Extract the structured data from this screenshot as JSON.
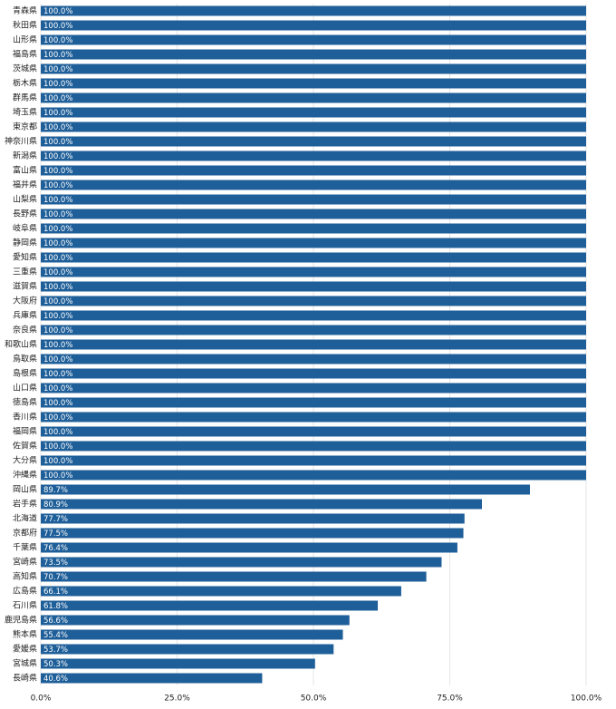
{
  "chart_data": {
    "type": "bar",
    "orientation": "horizontal",
    "color": "#1f5f99",
    "grid": true,
    "categories": [
      "青森県",
      "秋田県",
      "山形県",
      "福島県",
      "茨城県",
      "栃木県",
      "群馬県",
      "埼玉県",
      "東京都",
      "神奈川県",
      "新潟県",
      "富山県",
      "福井県",
      "山梨県",
      "長野県",
      "岐阜県",
      "静岡県",
      "愛知県",
      "三重県",
      "滋賀県",
      "大阪府",
      "兵庫県",
      "奈良県",
      "和歌山県",
      "鳥取県",
      "島根県",
      "山口県",
      "徳島県",
      "香川県",
      "福岡県",
      "佐賀県",
      "大分県",
      "沖縄県",
      "岡山県",
      "岩手県",
      "北海道",
      "京都府",
      "千葉県",
      "宮崎県",
      "高知県",
      "広島県",
      "石川県",
      "鹿児島県",
      "熊本県",
      "愛媛県",
      "宮城県",
      "長崎県"
    ],
    "values": [
      100,
      100,
      100,
      100,
      100,
      100,
      100,
      100,
      100,
      100,
      100,
      100,
      100,
      100,
      100,
      100,
      100,
      100,
      100,
      100,
      100,
      100,
      100,
      100,
      100,
      100,
      100,
      100,
      100,
      100,
      100,
      100,
      100,
      89.7,
      80.9,
      77.7,
      77.5,
      76.4,
      73.5,
      70.7,
      66.1,
      61.8,
      56.6,
      55.4,
      53.7,
      50.3,
      40.6
    ],
    "value_labels": [
      "100.0%",
      "100.0%",
      "100.0%",
      "100.0%",
      "100.0%",
      "100.0%",
      "100.0%",
      "100.0%",
      "100.0%",
      "100.0%",
      "100.0%",
      "100.0%",
      "100.0%",
      "100.0%",
      "100.0%",
      "100.0%",
      "100.0%",
      "100.0%",
      "100.0%",
      "100.0%",
      "100.0%",
      "100.0%",
      "100.0%",
      "100.0%",
      "100.0%",
      "100.0%",
      "100.0%",
      "100.0%",
      "100.0%",
      "100.0%",
      "100.0%",
      "100.0%",
      "100.0%",
      "89.7%",
      "80.9%",
      "77.7%",
      "77.5%",
      "76.4%",
      "73.5%",
      "70.7%",
      "66.1%",
      "61.8%",
      "56.6%",
      "55.4%",
      "53.7%",
      "50.3%",
      "40.6%"
    ],
    "xlim": [
      0,
      100
    ],
    "xticks": [
      {
        "value": 0,
        "label": "0.0%"
      },
      {
        "value": 25,
        "label": "25.0%"
      },
      {
        "value": 50,
        "label": "50.0%"
      },
      {
        "value": 75,
        "label": "75.0%"
      },
      {
        "value": 100,
        "label": "100.0%"
      }
    ]
  }
}
